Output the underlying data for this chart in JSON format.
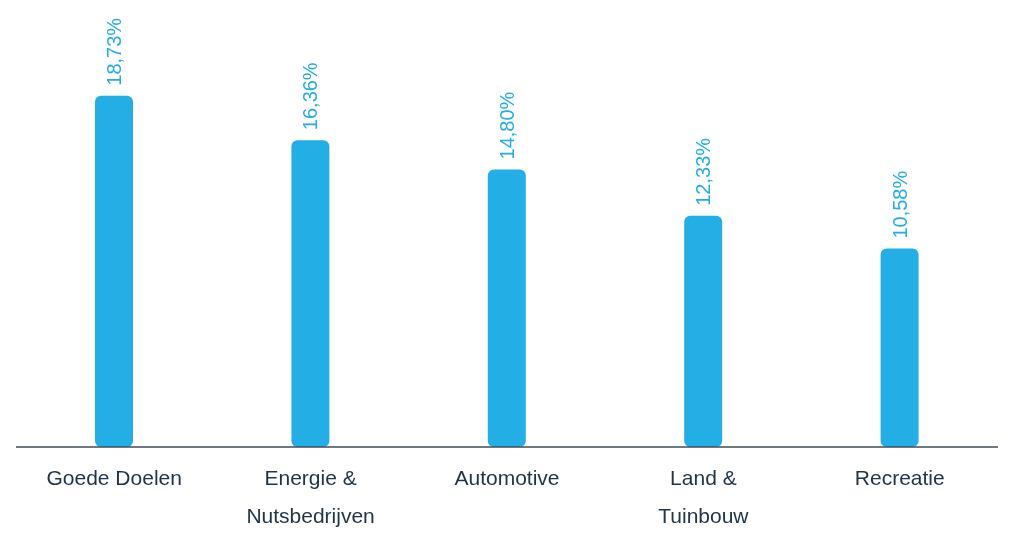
{
  "chart_data": {
    "type": "bar",
    "categories": [
      "Goede Doelen",
      "Energie & Nutsbedrijven",
      "Automotive",
      "Land & Tuinbouw",
      "Recreatie"
    ],
    "values": [
      18.73,
      16.36,
      14.8,
      12.33,
      10.58
    ],
    "value_labels": [
      "18,73%",
      "16,36%",
      "14,80%",
      "12,33%",
      "10,58%"
    ],
    "color": "#23aee5"
  }
}
